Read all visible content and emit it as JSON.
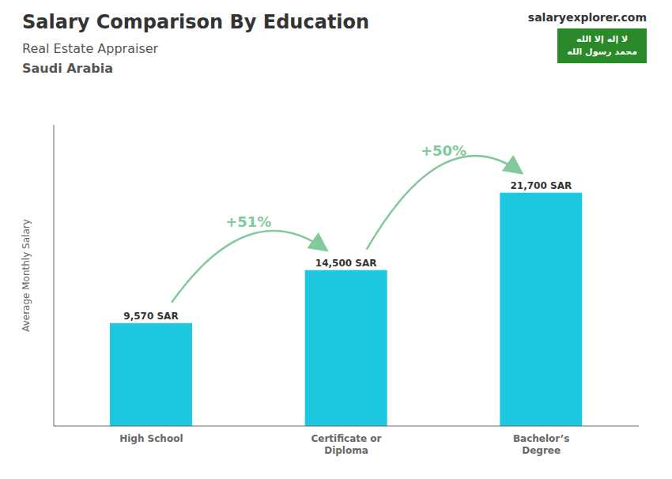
{
  "chart_data": {
    "type": "bar",
    "title": "Salary Comparison By Education",
    "subtitle": [
      "Real Estate Appraiser",
      "Saudi Arabia"
    ],
    "ylabel": "Average Monthly Salary",
    "categories": [
      "High School",
      "Certificate or\nDiploma",
      "Bachelor’s\nDegree"
    ],
    "values": [
      9570,
      14500,
      21700
    ],
    "value_labels": [
      "9,570 SAR",
      "14,500 SAR",
      "21,700 SAR"
    ],
    "data_labels": true,
    "color": "#1ec8e0",
    "ylim": [
      0,
      28000
    ],
    "yticks": [],
    "grid": false,
    "tick_labels": "x",
    "annotations": [
      {
        "text": "+51%",
        "between": [
          "High School",
          "Certificate or\nDiploma"
        ]
      },
      {
        "text": "+50%",
        "between": [
          "Certificate or\nDiploma",
          "Bachelor’s\nDegree"
        ]
      },
      {
        "text": "salaryexplorer.com"
      },
      {
        "text": "لا إله إلا الله"
      },
      {
        "text": "محمد رسول الله"
      }
    ]
  }
}
